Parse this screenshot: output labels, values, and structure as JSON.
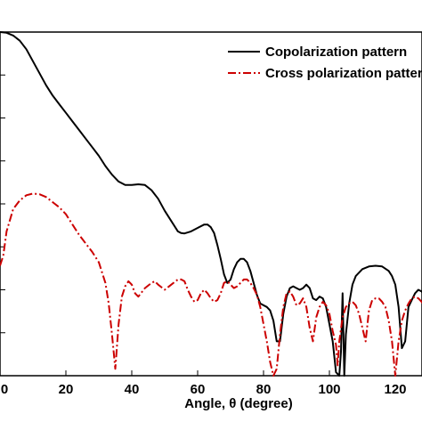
{
  "chart_data": {
    "type": "line",
    "title": "",
    "xlabel": "Angle, θ (degree)",
    "ylabel": "",
    "xlim": [
      0,
      130
    ],
    "x_ticks": [
      0,
      20,
      40,
      60,
      80,
      100,
      120
    ],
    "x_tick_labels": [
      "0",
      "20",
      "40",
      "60",
      "80",
      "100",
      "120"
    ],
    "grid": false,
    "legend_position": "top-right",
    "series": [
      {
        "name": "Copolarization pattern",
        "color": "#000000",
        "style": "solid",
        "points": [
          [
            0,
            1.0
          ],
          [
            2,
            0.998
          ],
          [
            4,
            0.99
          ],
          [
            6,
            0.975
          ],
          [
            8,
            0.95
          ],
          [
            10,
            0.915
          ],
          [
            12,
            0.88
          ],
          [
            14,
            0.845
          ],
          [
            16,
            0.815
          ],
          [
            18,
            0.79
          ],
          [
            20,
            0.765
          ],
          [
            22,
            0.74
          ],
          [
            24,
            0.715
          ],
          [
            26,
            0.69
          ],
          [
            28,
            0.665
          ],
          [
            30,
            0.64
          ],
          [
            32,
            0.61
          ],
          [
            34,
            0.585
          ],
          [
            36,
            0.565
          ],
          [
            38,
            0.555
          ],
          [
            40,
            0.555
          ],
          [
            42,
            0.557
          ],
          [
            44,
            0.555
          ],
          [
            46,
            0.54
          ],
          [
            48,
            0.515
          ],
          [
            50,
            0.48
          ],
          [
            52,
            0.45
          ],
          [
            54,
            0.42
          ],
          [
            55,
            0.415
          ],
          [
            56,
            0.414
          ],
          [
            58,
            0.42
          ],
          [
            60,
            0.43
          ],
          [
            62,
            0.44
          ],
          [
            63,
            0.44
          ],
          [
            64,
            0.432
          ],
          [
            65,
            0.415
          ],
          [
            66,
            0.38
          ],
          [
            67,
            0.34
          ],
          [
            68,
            0.295
          ],
          [
            69,
            0.27
          ],
          [
            70,
            0.28
          ],
          [
            71,
            0.31
          ],
          [
            72,
            0.33
          ],
          [
            73,
            0.34
          ],
          [
            74,
            0.34
          ],
          [
            75,
            0.33
          ],
          [
            76,
            0.305
          ],
          [
            77,
            0.27
          ],
          [
            78,
            0.235
          ],
          [
            79,
            0.21
          ],
          [
            80,
            0.205
          ],
          [
            81,
            0.2
          ],
          [
            82,
            0.19
          ],
          [
            83,
            0.16
          ],
          [
            84,
            0.1
          ],
          [
            85,
            0.1
          ],
          [
            86,
            0.18
          ],
          [
            87,
            0.23
          ],
          [
            88,
            0.255
          ],
          [
            89,
            0.26
          ],
          [
            90,
            0.255
          ],
          [
            91,
            0.25
          ],
          [
            92,
            0.255
          ],
          [
            93,
            0.265
          ],
          [
            94,
            0.255
          ],
          [
            95,
            0.225
          ],
          [
            96,
            0.22
          ],
          [
            97,
            0.23
          ],
          [
            98,
            0.225
          ],
          [
            99,
            0.2
          ],
          [
            100,
            0.15
          ],
          [
            101,
            0.1
          ],
          [
            102,
            0.01
          ],
          [
            103,
            0.0
          ],
          [
            103.5,
            0.07
          ],
          [
            104,
            0.24
          ],
          [
            104.5,
            0.0
          ],
          [
            105,
            0.12
          ],
          [
            106,
            0.21
          ],
          [
            107,
            0.265
          ],
          [
            108,
            0.29
          ],
          [
            110,
            0.31
          ],
          [
            112,
            0.318
          ],
          [
            114,
            0.32
          ],
          [
            116,
            0.318
          ],
          [
            118,
            0.305
          ],
          [
            119,
            0.29
          ],
          [
            120,
            0.265
          ],
          [
            121,
            0.2
          ],
          [
            122,
            0.08
          ],
          [
            123,
            0.1
          ],
          [
            124,
            0.2
          ],
          [
            125,
            0.22
          ],
          [
            126,
            0.24
          ],
          [
            127,
            0.25
          ],
          [
            128,
            0.245
          ],
          [
            129,
            0.23
          ],
          [
            130,
            0.215
          ]
        ]
      },
      {
        "name": "Cross polarization pattern",
        "color": "#cc0000",
        "style": "dashdot",
        "points": [
          [
            0,
            0.32
          ],
          [
            1,
            0.35
          ],
          [
            2,
            0.42
          ],
          [
            4,
            0.485
          ],
          [
            6,
            0.51
          ],
          [
            8,
            0.525
          ],
          [
            10,
            0.53
          ],
          [
            12,
            0.528
          ],
          [
            14,
            0.52
          ],
          [
            16,
            0.505
          ],
          [
            18,
            0.49
          ],
          [
            20,
            0.47
          ],
          [
            22,
            0.44
          ],
          [
            24,
            0.41
          ],
          [
            26,
            0.385
          ],
          [
            28,
            0.36
          ],
          [
            30,
            0.33
          ],
          [
            32,
            0.27
          ],
          [
            33,
            0.21
          ],
          [
            34,
            0.12
          ],
          [
            35,
            0.02
          ],
          [
            36,
            0.15
          ],
          [
            37,
            0.23
          ],
          [
            38,
            0.26
          ],
          [
            39,
            0.275
          ],
          [
            40,
            0.265
          ],
          [
            41,
            0.24
          ],
          [
            42,
            0.23
          ],
          [
            44,
            0.255
          ],
          [
            46,
            0.27
          ],
          [
            47,
            0.275
          ],
          [
            48,
            0.265
          ],
          [
            50,
            0.25
          ],
          [
            52,
            0.265
          ],
          [
            54,
            0.28
          ],
          [
            55,
            0.28
          ],
          [
            56,
            0.275
          ],
          [
            57,
            0.25
          ],
          [
            58,
            0.23
          ],
          [
            59,
            0.215
          ],
          [
            60,
            0.22
          ],
          [
            61,
            0.24
          ],
          [
            62,
            0.25
          ],
          [
            63,
            0.24
          ],
          [
            64,
            0.225
          ],
          [
            65,
            0.215
          ],
          [
            66,
            0.22
          ],
          [
            67,
            0.24
          ],
          [
            68,
            0.27
          ],
          [
            69,
            0.275
          ],
          [
            70,
            0.265
          ],
          [
            71,
            0.255
          ],
          [
            72,
            0.26
          ],
          [
            74,
            0.28
          ],
          [
            75,
            0.28
          ],
          [
            76,
            0.27
          ],
          [
            77,
            0.255
          ],
          [
            78,
            0.235
          ],
          [
            79,
            0.2
          ],
          [
            80,
            0.15
          ],
          [
            81,
            0.1
          ],
          [
            82,
            0.04
          ],
          [
            83,
            0.0
          ],
          [
            84,
            0.02
          ],
          [
            85,
            0.12
          ],
          [
            86,
            0.2
          ],
          [
            87,
            0.24
          ],
          [
            88,
            0.245
          ],
          [
            89,
            0.23
          ],
          [
            90,
            0.205
          ],
          [
            91,
            0.21
          ],
          [
            92,
            0.225
          ],
          [
            93,
            0.2
          ],
          [
            94,
            0.14
          ],
          [
            95,
            0.1
          ],
          [
            96,
            0.17
          ],
          [
            97,
            0.2
          ],
          [
            98,
            0.215
          ],
          [
            99,
            0.205
          ],
          [
            100,
            0.18
          ],
          [
            101,
            0.13
          ],
          [
            102,
            0.09
          ],
          [
            102.5,
            0.03
          ],
          [
            103,
            0.1
          ],
          [
            104,
            0.17
          ],
          [
            105,
            0.2
          ],
          [
            106,
            0.21
          ],
          [
            107,
            0.215
          ],
          [
            108,
            0.205
          ],
          [
            109,
            0.18
          ],
          [
            110,
            0.14
          ],
          [
            111,
            0.1
          ],
          [
            112,
            0.19
          ],
          [
            113,
            0.22
          ],
          [
            114,
            0.225
          ],
          [
            115,
            0.225
          ],
          [
            116,
            0.215
          ],
          [
            117,
            0.2
          ],
          [
            118,
            0.16
          ],
          [
            119,
            0.1
          ],
          [
            120,
            0.0
          ],
          [
            121,
            0.1
          ],
          [
            122,
            0.16
          ],
          [
            123,
            0.19
          ],
          [
            124,
            0.21
          ],
          [
            125,
            0.225
          ],
          [
            126,
            0.23
          ],
          [
            127,
            0.225
          ],
          [
            128,
            0.215
          ],
          [
            129,
            0.2
          ],
          [
            130,
            0.18
          ]
        ]
      }
    ]
  }
}
